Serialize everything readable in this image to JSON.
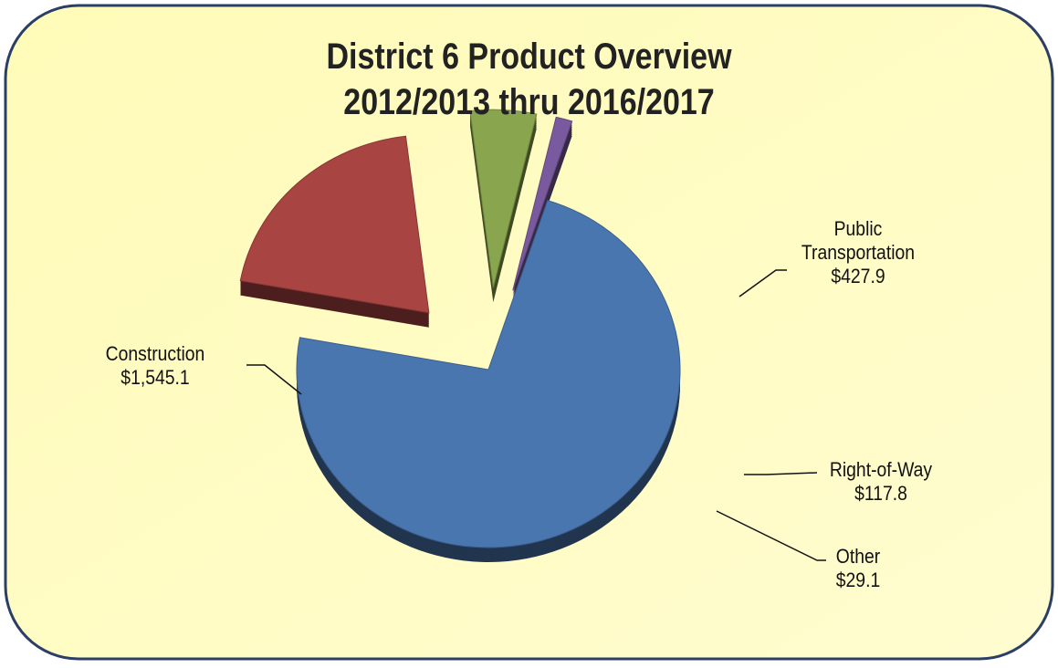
{
  "chart_data": {
    "type": "pie",
    "title": "District 6 Product Overview",
    "subtitle": "2012/2013 thru 2016/2017",
    "categories": [
      "Construction",
      "Public Transportation",
      "Right-of-Way",
      "Other"
    ],
    "values": [
      1545.1,
      427.9,
      117.8,
      29.1
    ],
    "value_labels": [
      "$1,545.1",
      "$427.9",
      "$117.8",
      "$29.1"
    ],
    "colors": [
      "#4a76b0",
      "#a84442",
      "#89a54e",
      "#7a5a9e"
    ]
  }
}
